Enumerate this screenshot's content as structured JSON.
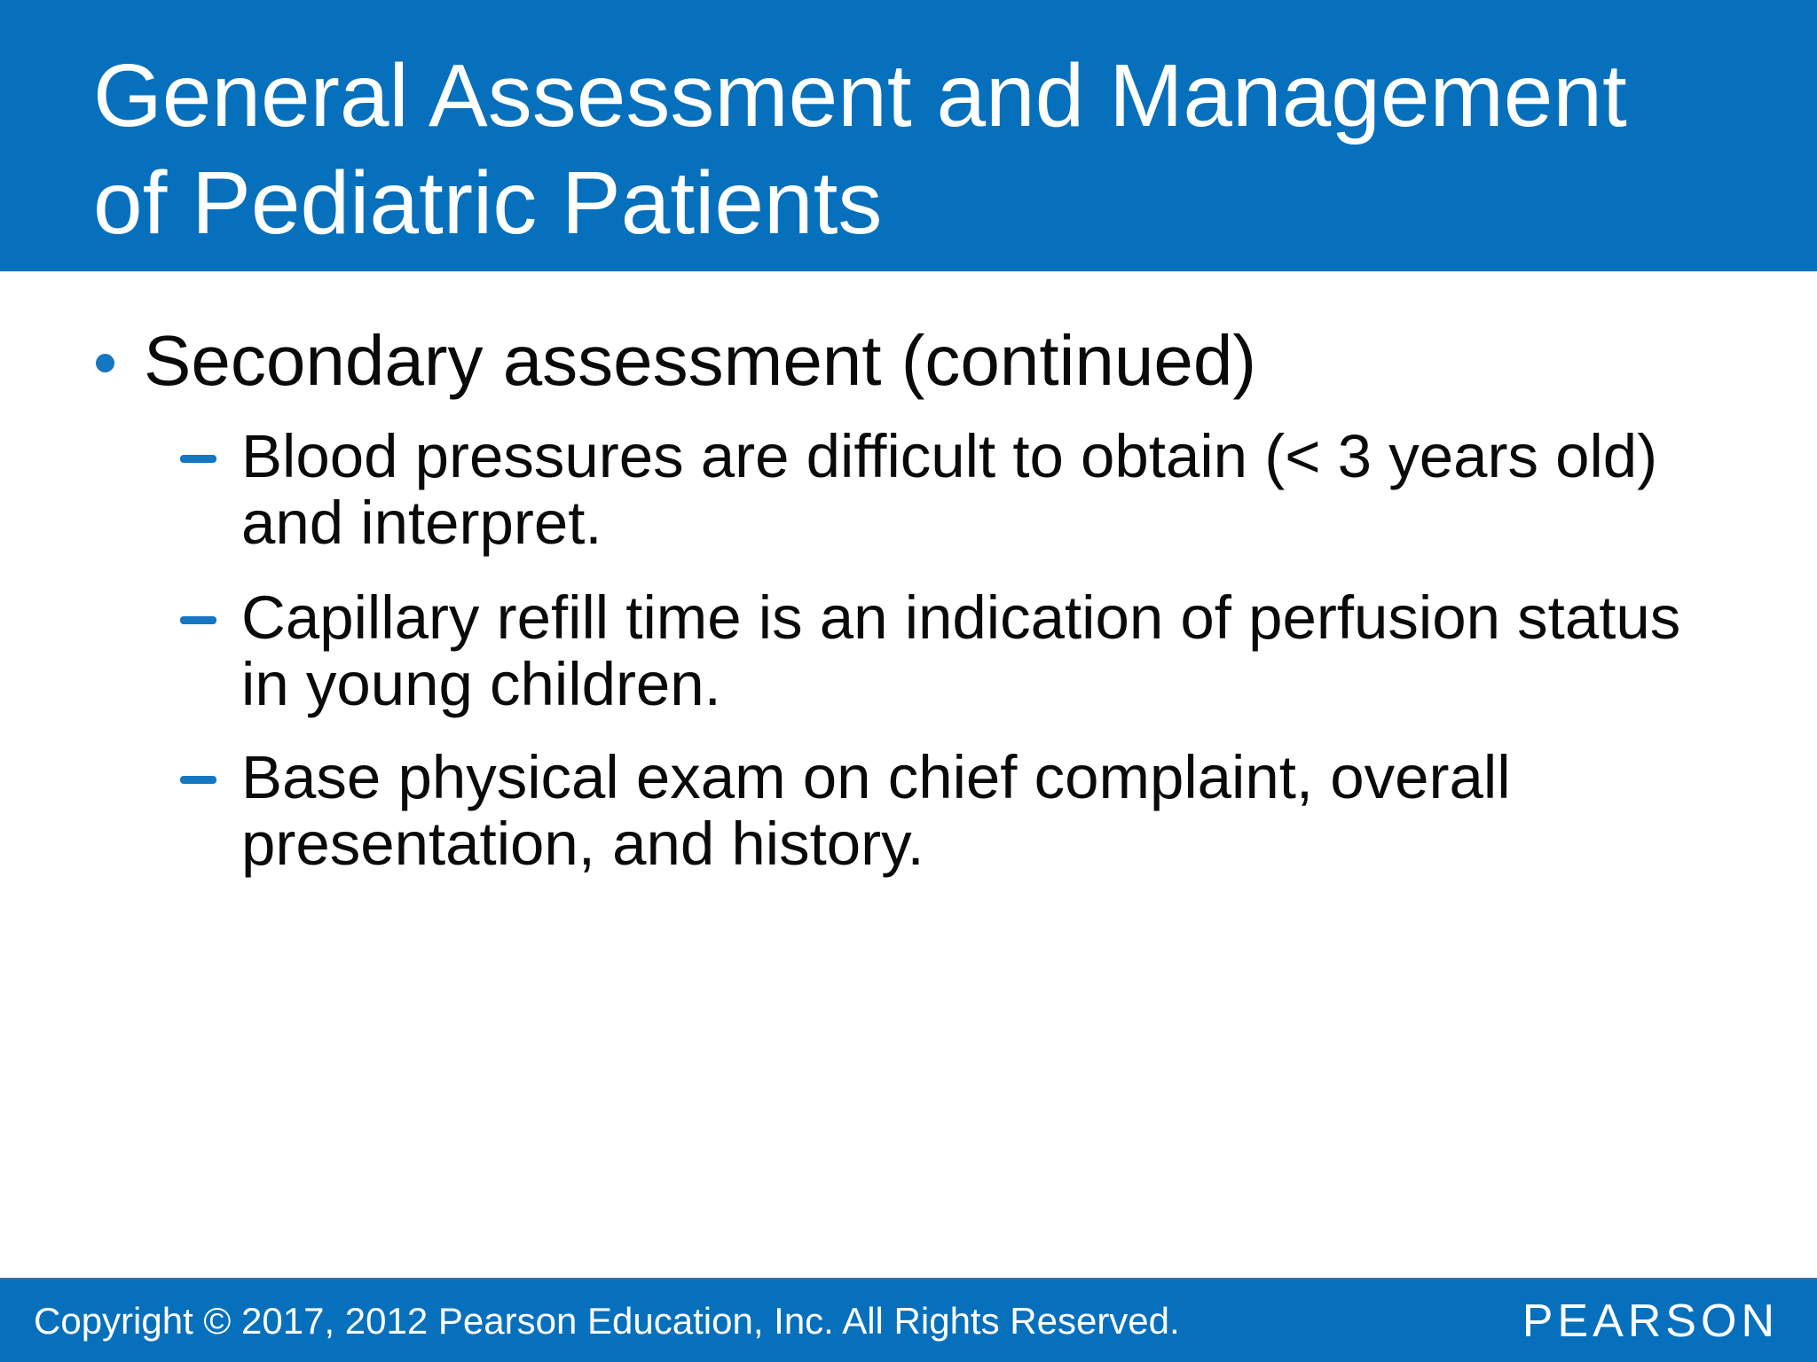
{
  "header": {
    "title_line1": "General Assessment and Management",
    "title_line2": "of Pediatric Patients"
  },
  "content": {
    "bullet": "Secondary assessment (continued)",
    "sub_bullets": [
      "Blood pressures are difficult to obtain (< 3 years old) and interpret.",
      "Capillary refill time is an indication of perfusion status in young children.",
      "Base physical exam on chief complaint, overall presentation, and history."
    ]
  },
  "footer": {
    "copyright": "Copyright © 2017, 2012 Pearson Education, Inc. All Rights Reserved.",
    "brand": "PEARSON"
  },
  "colors": {
    "bar_blue": "#0770bc",
    "accent_blue": "#1576c2",
    "title_text": "#ffffff",
    "body_text": "#0a0a0a"
  }
}
